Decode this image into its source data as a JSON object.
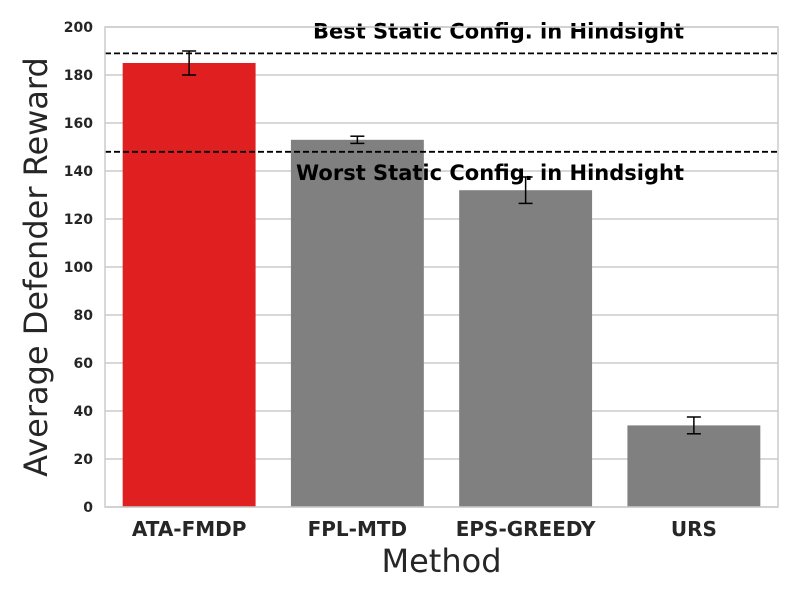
{
  "chart_data": {
    "type": "bar",
    "xlabel": "Method",
    "ylabel": "Average Defender Reward",
    "ylim": [
      0,
      200
    ],
    "yticks": [
      0,
      20,
      40,
      60,
      80,
      100,
      120,
      140,
      160,
      180,
      200
    ],
    "grid": "horizontal",
    "categories": [
      "ATA-FMDP",
      "FPL-MTD",
      "EPS-GREEDY",
      "URS"
    ],
    "values": [
      185,
      153,
      132,
      34
    ],
    "errors": [
      5,
      1.5,
      5.5,
      3.5
    ],
    "bar_colors": [
      "#e02020",
      "#808080",
      "#808080",
      "#808080"
    ],
    "reference_lines": [
      {
        "label": "Best Static Config. in Hindsight",
        "value": 189
      },
      {
        "label": "Worst Static Config. in Hindsight",
        "value": 148
      }
    ]
  }
}
